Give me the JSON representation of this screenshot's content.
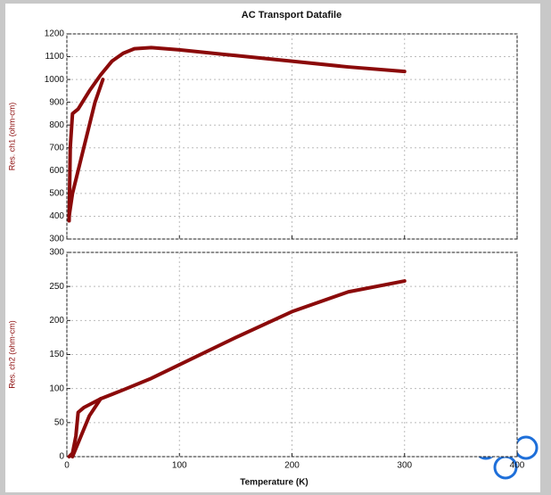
{
  "chart_data": [
    {
      "type": "line",
      "title": "AC Transport Datafile",
      "ylabel": "Res. ch1 (ohm-cm)",
      "xlim": [
        0,
        400
      ],
      "xticks": [
        0,
        100,
        200,
        300,
        400
      ],
      "ylim": [
        300,
        1200
      ],
      "yticks": [
        300,
        400,
        500,
        600,
        700,
        800,
        900,
        1000,
        1100,
        1200
      ],
      "grid": true,
      "series": [
        {
          "color": "#8b0a0a",
          "x": [
            2,
            3,
            5,
            10,
            20,
            30,
            40,
            50,
            60,
            75,
            100,
            150,
            200,
            250,
            300
          ],
          "values": [
            380,
            700,
            850,
            870,
            950,
            1020,
            1080,
            1115,
            1135,
            1140,
            1130,
            1105,
            1080,
            1055,
            1035
          ]
        },
        {
          "color": "#8b0a0a",
          "x": [
            2,
            5,
            15,
            25,
            32
          ],
          "values": [
            400,
            500,
            700,
            900,
            1000
          ]
        }
      ]
    },
    {
      "type": "line",
      "ylabel": "Res. ch2 (ohm-cm)",
      "xlabel": "Temperature (K)",
      "xlim": [
        0,
        400
      ],
      "xticks": [
        0,
        100,
        200,
        300,
        400
      ],
      "ylim": [
        0,
        300
      ],
      "yticks": [
        0,
        50,
        100,
        150,
        200,
        250,
        300
      ],
      "grid": true,
      "series": [
        {
          "color": "#8b0a0a",
          "x": [
            2,
            5,
            8,
            10,
            15,
            30,
            50,
            75,
            100,
            150,
            200,
            250,
            300
          ],
          "values": [
            0,
            5,
            30,
            65,
            72,
            85,
            98,
            115,
            135,
            175,
            213,
            242,
            258
          ]
        },
        {
          "color": "#8b0a0a",
          "x": [
            5,
            10,
            20,
            30
          ],
          "values": [
            0,
            20,
            60,
            85
          ]
        }
      ]
    }
  ]
}
